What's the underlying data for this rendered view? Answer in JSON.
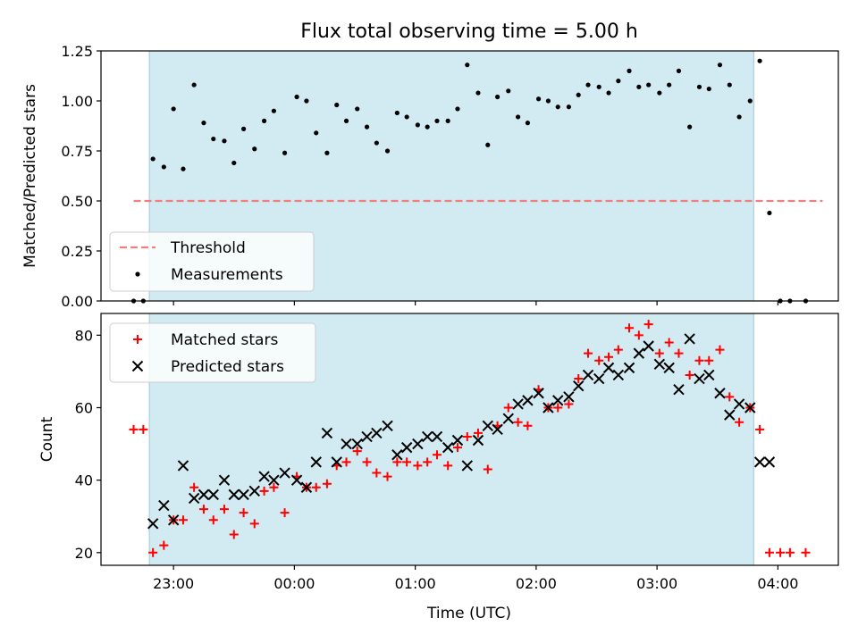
{
  "chart_data": [
    {
      "type": "scatter",
      "title": "Flux total observing time = 5.00 h",
      "ylabel": "Matched/Predicted stars",
      "ylim": [
        0.0,
        1.25
      ],
      "yticks": [
        0.0,
        0.25,
        0.5,
        0.75,
        1.0,
        1.25
      ],
      "ytick_labels": [
        "0.00",
        "0.25",
        "0.50",
        "0.75",
        "1.00",
        "1.25"
      ],
      "xlim_hours": [
        -1.6,
        4.5
      ],
      "shaded_span_hours": [
        -1.2,
        3.8
      ],
      "shaded_color": "#add8e6",
      "legend_position": "lower-left",
      "threshold": {
        "name": "Threshold",
        "value": 0.5,
        "x_range_hours": [
          -1.33,
          4.37
        ],
        "color": "#f08080",
        "style": "dashed"
      },
      "series": [
        {
          "name": "Measurements",
          "color": "#000000",
          "x_hours": [
            -1.33,
            -1.25,
            -1.17,
            -1.08,
            -1.0,
            -0.92,
            -0.83,
            -0.75,
            -0.67,
            -0.58,
            -0.5,
            -0.42,
            -0.33,
            -0.25,
            -0.17,
            -0.08,
            0.02,
            0.1,
            0.18,
            0.27,
            0.35,
            0.43,
            0.52,
            0.6,
            0.68,
            0.77,
            0.85,
            0.93,
            1.02,
            1.1,
            1.18,
            1.27,
            1.35,
            1.43,
            1.52,
            1.6,
            1.68,
            1.77,
            1.85,
            1.93,
            2.02,
            2.1,
            2.18,
            2.27,
            2.35,
            2.43,
            2.52,
            2.6,
            2.68,
            2.77,
            2.85,
            2.93,
            3.02,
            3.1,
            3.18,
            3.27,
            3.35,
            3.43,
            3.52,
            3.6,
            3.68,
            3.77,
            3.85,
            3.93,
            4.02,
            4.1,
            4.23
          ],
          "y": [
            0.0,
            0.0,
            0.71,
            0.67,
            0.96,
            0.66,
            1.08,
            0.89,
            0.81,
            0.8,
            0.69,
            0.86,
            0.76,
            0.9,
            0.95,
            0.74,
            1.02,
            1.0,
            0.84,
            0.74,
            0.98,
            0.9,
            0.96,
            0.87,
            0.79,
            0.75,
            0.94,
            0.92,
            0.88,
            0.87,
            0.9,
            0.9,
            0.96,
            1.18,
            1.04,
            0.78,
            1.02,
            1.05,
            0.92,
            0.89,
            1.01,
            1.0,
            0.97,
            0.97,
            1.03,
            1.08,
            1.07,
            1.04,
            1.1,
            1.15,
            1.07,
            1.08,
            1.04,
            1.08,
            1.15,
            0.87,
            1.07,
            1.06,
            1.18,
            1.08,
            0.92,
            1.0,
            1.2,
            0.44,
            0.0,
            0.0,
            0.0
          ]
        }
      ]
    },
    {
      "type": "scatter",
      "xlabel": "Time (UTC)",
      "ylabel": "Count",
      "ylim": [
        16.5,
        86
      ],
      "yticks": [
        20,
        40,
        60,
        80
      ],
      "ytick_labels": [
        "20",
        "40",
        "60",
        "80"
      ],
      "xlim_hours": [
        -1.6,
        4.5
      ],
      "xticks_hours": [
        -1,
        0,
        1,
        2,
        3,
        4
      ],
      "xtick_labels": [
        "23:00",
        "00:00",
        "01:00",
        "02:00",
        "03:00",
        "04:00"
      ],
      "shaded_span_hours": [
        -1.2,
        3.8
      ],
      "shaded_color": "#add8e6",
      "legend_position": "upper-left",
      "series": [
        {
          "name": "Matched stars",
          "marker": "+",
          "color": "#ff0000",
          "x_hours": [
            -1.33,
            -1.25,
            -1.17,
            -1.08,
            -1.0,
            -0.92,
            -0.83,
            -0.75,
            -0.67,
            -0.58,
            -0.5,
            -0.42,
            -0.33,
            -0.25,
            -0.17,
            -0.08,
            0.02,
            0.1,
            0.18,
            0.27,
            0.35,
            0.43,
            0.52,
            0.6,
            0.68,
            0.77,
            0.85,
            0.93,
            1.02,
            1.1,
            1.18,
            1.27,
            1.35,
            1.43,
            1.52,
            1.6,
            1.68,
            1.77,
            1.85,
            1.93,
            2.02,
            2.1,
            2.18,
            2.27,
            2.35,
            2.43,
            2.52,
            2.6,
            2.68,
            2.77,
            2.85,
            2.93,
            3.02,
            3.1,
            3.18,
            3.27,
            3.35,
            3.43,
            3.52,
            3.6,
            3.68,
            3.77,
            3.85,
            3.93,
            4.02,
            4.1,
            4.23
          ],
          "y": [
            54,
            54,
            20,
            22,
            29,
            29,
            38,
            32,
            29,
            32,
            25,
            31,
            28,
            37,
            38,
            31,
            41,
            38,
            38,
            39,
            44,
            45,
            48,
            45,
            42,
            41,
            45,
            45,
            44,
            45,
            47,
            44,
            49,
            52,
            53,
            43,
            55,
            60,
            56,
            55,
            65,
            60,
            60,
            61,
            68,
            75,
            73,
            74,
            76,
            82,
            80,
            83,
            75,
            78,
            75,
            69,
            73,
            73,
            76,
            63,
            56,
            60,
            54,
            20,
            20,
            20,
            20
          ]
        },
        {
          "name": "Predicted stars",
          "marker": "x",
          "color": "#000000",
          "x_hours": [
            -1.17,
            -1.08,
            -1.0,
            -0.92,
            -0.83,
            -0.75,
            -0.67,
            -0.58,
            -0.5,
            -0.42,
            -0.33,
            -0.25,
            -0.17,
            -0.08,
            0.02,
            0.1,
            0.18,
            0.27,
            0.35,
            0.43,
            0.52,
            0.6,
            0.68,
            0.77,
            0.85,
            0.93,
            1.02,
            1.1,
            1.18,
            1.27,
            1.35,
            1.43,
            1.52,
            1.6,
            1.68,
            1.77,
            1.85,
            1.93,
            2.02,
            2.1,
            2.18,
            2.27,
            2.35,
            2.43,
            2.52,
            2.6,
            2.68,
            2.77,
            2.85,
            2.93,
            3.02,
            3.1,
            3.18,
            3.27,
            3.35,
            3.43,
            3.52,
            3.6,
            3.68,
            3.77,
            3.85,
            3.93
          ],
          "y": [
            28,
            33,
            29,
            44,
            35,
            36,
            36,
            40,
            36,
            36,
            37,
            41,
            40,
            42,
            40,
            38,
            45,
            53,
            45,
            50,
            50,
            52,
            53,
            55,
            47,
            49,
            50,
            52,
            52,
            49,
            51,
            44,
            51,
            55,
            54,
            57,
            61,
            62,
            64,
            60,
            62,
            63,
            66,
            69,
            68,
            71,
            69,
            71,
            75,
            77,
            72,
            71,
            65,
            79,
            68,
            69,
            64,
            58,
            61,
            60,
            45,
            45
          ]
        }
      ]
    }
  ]
}
